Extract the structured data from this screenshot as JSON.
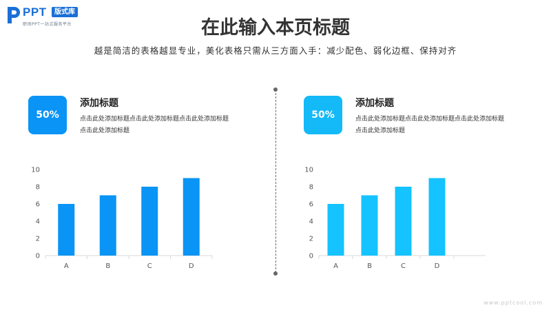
{
  "logo": {
    "brand": "PPT",
    "badge": "版式库",
    "tagline": "职场PPT一站式服务平台",
    "icon": "ppt-logo-icon",
    "color": "#1a6fd8"
  },
  "page": {
    "title": "在此输入本页标题",
    "subtitle": "越是简洁的表格越显专业，美化表格只需从三方面入手：减少配色、弱化边框、保持对齐"
  },
  "panels": [
    {
      "badge": "50%",
      "badge_color": "#0a94f5",
      "title": "添加标题",
      "desc": "点击此处添加标题点击此处添加标题点击此处添加标题点击此处添加标题",
      "chart_data": {
        "type": "bar",
        "categories": [
          "A",
          "B",
          "C",
          "D"
        ],
        "values": [
          6,
          7,
          8,
          9
        ],
        "ylim": [
          0,
          10
        ],
        "yticks": [
          0,
          2,
          4,
          6,
          8,
          10
        ],
        "grid": false,
        "color": "#0a94f5"
      }
    },
    {
      "badge": "50%",
      "badge_color": "#14b9f7",
      "title": "添加标题",
      "desc": "点击此处添加标题点击此处添加标题点击此处添加标题点击此处添加标题",
      "chart_data": {
        "type": "bar",
        "categories": [
          "A",
          "B",
          "C",
          "D"
        ],
        "values": [
          6,
          7,
          8,
          9
        ],
        "ylim": [
          0,
          10
        ],
        "yticks": [
          0,
          2,
          4,
          6,
          8,
          10
        ],
        "grid": false,
        "color": "#14c3ff"
      }
    }
  ],
  "watermark": "www.pptcool.com"
}
